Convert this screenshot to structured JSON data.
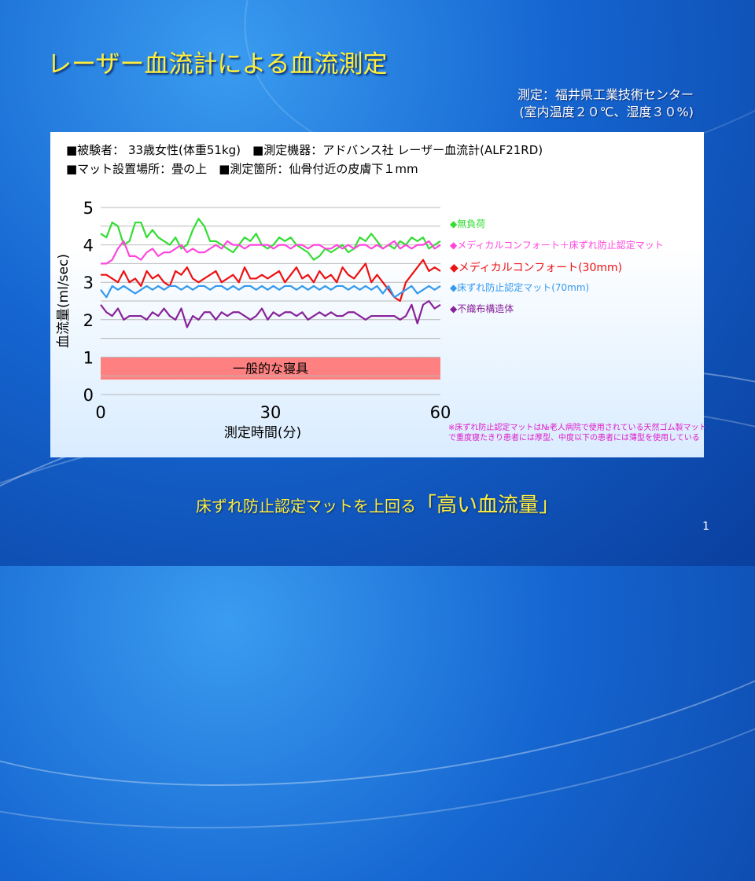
{
  "slide": {
    "title": "レーザー血流計による血流測定",
    "source_line1": "測定：福井県工業技術センター",
    "source_line2": "(室内温度２０℃、湿度３０%)",
    "info_line1": "■被験者： 33歳女性(体重51kg)　■測定機器：アドバンス社 レーザー血流計(ALF21RD)",
    "info_line2": "■マット設置場所：畳の上　■測定箇所：仙骨付近の皮膚下１mm",
    "note": "※床ずれ防止認定マットは№老人病院で使用されている天然ゴム製マットで重度寝たきり患者には厚型、中度以下の患者には薄型を使用している",
    "tagline_prefix": "床ずれ防止認定マットを上回る",
    "tagline_emphasis": "「高い血流量」",
    "page_number": "1"
  },
  "chart_data": {
    "type": "line",
    "ylabel": "血流量(ml/sec)",
    "xlabel": "測定時間(分)",
    "xlim": [
      0,
      60
    ],
    "ylim": [
      0,
      5
    ],
    "x_ticks": [
      "0",
      "30",
      "60"
    ],
    "y_ticks": [
      "0",
      "1",
      "2",
      "3",
      "4",
      "5"
    ],
    "grid": true,
    "band": {
      "label": "一般的な寝具",
      "from": 0.4,
      "to": 1.0,
      "color": "#ff8080"
    },
    "series": [
      {
        "name": "◆無負荷",
        "color": "#33dd33",
        "values": [
          4.3,
          4.2,
          4.6,
          4.5,
          4.0,
          4.1,
          4.6,
          4.6,
          4.2,
          4.4,
          4.2,
          4.1,
          4.0,
          4.2,
          3.9,
          4.0,
          4.4,
          4.7,
          4.5,
          4.1,
          4.1,
          4.0,
          3.9,
          3.8,
          4.0,
          4.2,
          4.1,
          4.3,
          4.0,
          3.9,
          4.0,
          4.2,
          4.1,
          4.2,
          4.0,
          3.9,
          3.8,
          3.6,
          3.7,
          3.9,
          3.8,
          3.9,
          4.0,
          3.8,
          3.9,
          4.2,
          4.1,
          4.3,
          4.1,
          3.9,
          4.0,
          3.9,
          4.1,
          4.0,
          4.2,
          4.1,
          4.2,
          3.9,
          4.0,
          4.1
        ]
      },
      {
        "name": "◆メディカルコンフォート＋床ずれ防止認定マット",
        "color": "#ff44dd",
        "values": [
          3.5,
          3.5,
          3.6,
          3.9,
          4.1,
          3.7,
          3.7,
          3.6,
          3.8,
          3.9,
          3.7,
          3.8,
          3.8,
          3.9,
          4.0,
          3.8,
          3.9,
          3.8,
          3.8,
          3.9,
          4.0,
          3.9,
          4.1,
          4.0,
          4.0,
          3.9,
          4.0,
          4.0,
          4.0,
          4.0,
          3.9,
          4.0,
          4.0,
          3.9,
          4.0,
          4.0,
          3.9,
          4.0,
          4.0,
          3.9,
          3.9,
          4.0,
          3.9,
          4.0,
          3.9,
          4.0,
          4.0,
          3.9,
          4.0,
          3.9,
          4.0,
          4.1,
          3.9,
          4.0,
          3.9,
          4.0,
          4.0,
          4.1,
          3.9,
          4.0
        ]
      },
      {
        "name": "◆メディカルコンフォート(30mm)",
        "color": "#ee1111",
        "values": [
          3.2,
          3.2,
          3.1,
          3.0,
          3.3,
          3.0,
          3.1,
          2.9,
          3.3,
          3.1,
          3.2,
          3.0,
          2.9,
          3.3,
          3.2,
          3.4,
          3.1,
          3.0,
          3.1,
          3.2,
          3.3,
          3.0,
          3.1,
          3.2,
          3.0,
          3.4,
          3.1,
          3.1,
          3.2,
          3.1,
          3.2,
          3.3,
          3.0,
          3.2,
          3.4,
          3.1,
          3.2,
          3.0,
          3.3,
          3.1,
          3.2,
          3.0,
          3.4,
          3.2,
          3.1,
          3.3,
          3.5,
          3.0,
          3.2,
          3.0,
          2.8,
          2.6,
          2.5,
          3.0,
          3.2,
          3.4,
          3.6,
          3.3,
          3.4,
          3.3
        ]
      },
      {
        "name": "◆床ずれ防止認定マット(70mm)",
        "color": "#3399ee",
        "values": [
          2.8,
          2.6,
          2.9,
          2.8,
          2.9,
          2.8,
          2.7,
          2.8,
          2.9,
          2.8,
          2.9,
          2.8,
          2.9,
          2.9,
          2.8,
          2.9,
          2.8,
          2.9,
          2.9,
          2.8,
          2.9,
          2.9,
          2.8,
          2.9,
          2.8,
          2.9,
          2.9,
          2.8,
          2.9,
          2.8,
          2.9,
          2.8,
          2.9,
          2.9,
          2.8,
          2.9,
          2.8,
          2.9,
          2.8,
          2.9,
          2.8,
          2.9,
          2.9,
          2.8,
          2.9,
          2.8,
          2.9,
          2.8,
          2.9,
          2.7,
          2.9,
          2.6,
          2.7,
          2.8,
          2.9,
          2.7,
          2.8,
          2.9,
          2.8,
          2.9
        ]
      },
      {
        "name": "◆不織布構造体",
        "color": "#882299",
        "values": [
          2.4,
          2.2,
          2.1,
          2.3,
          2.0,
          2.1,
          2.1,
          2.1,
          2.0,
          2.2,
          2.1,
          2.3,
          2.1,
          2.0,
          2.3,
          1.8,
          2.1,
          2.0,
          2.2,
          2.2,
          2.0,
          2.2,
          2.1,
          2.2,
          2.2,
          2.1,
          2.0,
          2.1,
          2.3,
          2.0,
          2.2,
          2.1,
          2.2,
          2.2,
          2.1,
          2.2,
          2.0,
          2.1,
          2.2,
          2.1,
          2.2,
          2.1,
          2.1,
          2.2,
          2.2,
          2.1,
          2.0,
          2.1,
          2.1,
          2.1,
          2.1,
          2.1,
          2.0,
          2.1,
          2.4,
          1.9,
          2.4,
          2.5,
          2.3,
          2.4
        ]
      }
    ]
  }
}
